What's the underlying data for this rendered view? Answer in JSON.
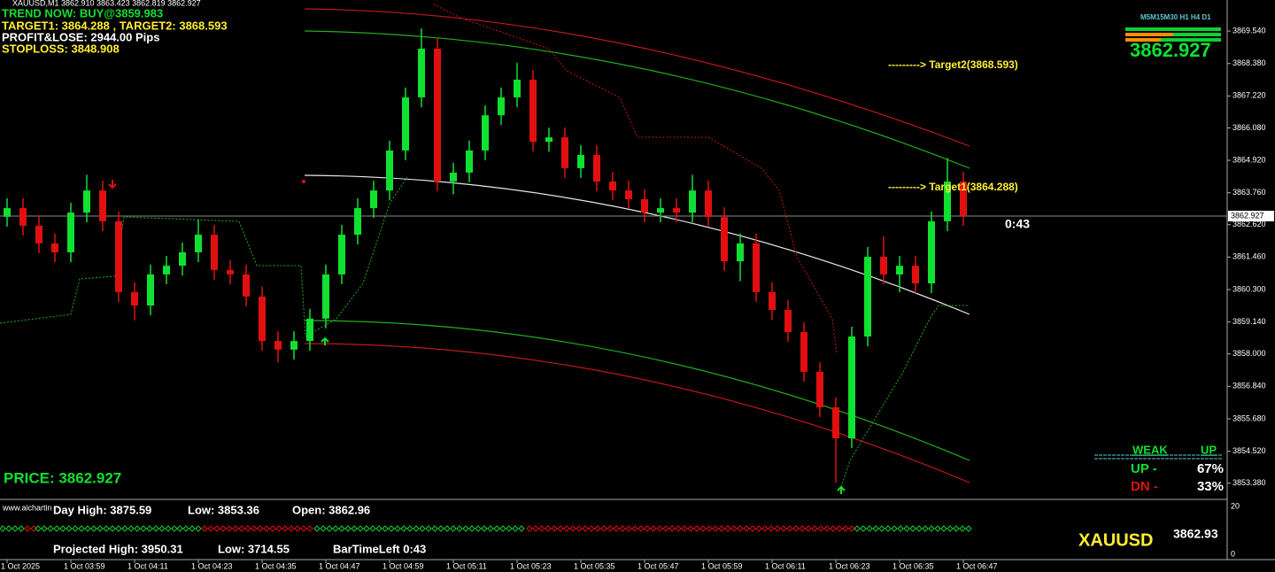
{
  "header": {
    "symbol_line": "XAUUSD,M1  3862.910 3863.423 3862.819 3862.927",
    "trend": "TREND NOW: BUY@3859.983",
    "targets": "TARGET1: 3864.288 , TARGET2: 3868.593",
    "profit": "PROFIT&LOSE: 2944.00 Pips",
    "stoploss": "STOPLOSS: 3848.908"
  },
  "chart_data": {
    "type": "candlestick",
    "open": [
      3862.9,
      3863.21,
      3862.58,
      3861.95,
      3861.63,
      3863.05,
      3863.84,
      3862.74,
      3860.21,
      3859.73,
      3860.84,
      3861.15,
      3861.63,
      3862.26,
      3861.0,
      3860.84,
      3860.05,
      3858.46,
      3858.15,
      3858.46,
      3859.26,
      3860.84,
      3862.26,
      3863.21,
      3863.84,
      3865.27,
      3867.17,
      3868.91,
      3864.16,
      3864.48,
      3865.27,
      3866.53,
      3867.17,
      3867.8,
      3865.58,
      3865.74,
      3864.64,
      3865.11,
      3864.16,
      3863.84,
      3863.53,
      3863.05,
      3863.21,
      3863.05,
      3863.84,
      3862.89,
      3861.31,
      3861.95,
      3860.21,
      3859.57,
      3858.78,
      3857.36,
      3856.09,
      3854.98,
      3858.62,
      3861.47,
      3860.84,
      3861.15,
      3860.52,
      3862.74,
      3864.16
    ],
    "high": [
      3863.56,
      3863.56,
      3862.93,
      3862.3,
      3863.4,
      3864.4,
      3864.19,
      3863.09,
      3860.56,
      3861.19,
      3861.5,
      3861.98,
      3862.8,
      3862.61,
      3861.35,
      3861.19,
      3860.4,
      3858.81,
      3858.81,
      3859.61,
      3861.19,
      3862.61,
      3863.56,
      3864.19,
      3865.62,
      3867.52,
      3869.63,
      3869.26,
      3864.83,
      3865.62,
      3866.88,
      3867.52,
      3868.4,
      3868.15,
      3866.09,
      3866.09,
      3865.46,
      3865.46,
      3864.51,
      3864.19,
      3863.88,
      3863.56,
      3863.56,
      3864.4,
      3864.19,
      3863.24,
      3862.3,
      3862.3,
      3860.56,
      3859.92,
      3859.13,
      3857.71,
      3856.44,
      3858.97,
      3861.82,
      3862.2,
      3861.5,
      3861.5,
      3863.09,
      3865.0,
      3864.51
    ],
    "low": [
      3862.55,
      3862.23,
      3861.6,
      3861.28,
      3861.28,
      3862.7,
      3862.39,
      3859.86,
      3859.2,
      3859.38,
      3860.49,
      3860.8,
      3861.28,
      3860.65,
      3860.49,
      3859.7,
      3858.11,
      3857.7,
      3857.8,
      3858.11,
      3858.91,
      3860.49,
      3861.91,
      3862.86,
      3863.49,
      3864.92,
      3866.82,
      3863.81,
      3863.7,
      3864.13,
      3864.92,
      3866.18,
      3866.82,
      3865.23,
      3865.23,
      3864.29,
      3864.29,
      3863.81,
      3863.49,
      3863.18,
      3862.7,
      3862.7,
      3862.7,
      3862.7,
      3862.54,
      3860.96,
      3860.6,
      3859.86,
      3859.22,
      3858.43,
      3857.01,
      3855.74,
      3853.4,
      3854.63,
      3858.27,
      3860.49,
      3860.2,
      3860.17,
      3860.17,
      3862.39,
      3862.58
    ],
    "close": [
      3863.21,
      3862.58,
      3861.95,
      3861.63,
      3863.05,
      3863.84,
      3862.74,
      3860.21,
      3859.73,
      3860.84,
      3861.15,
      3861.63,
      3862.26,
      3861.0,
      3860.84,
      3860.05,
      3858.46,
      3858.15,
      3858.46,
      3859.26,
      3860.84,
      3862.26,
      3863.21,
      3863.84,
      3865.27,
      3867.17,
      3868.91,
      3864.16,
      3864.48,
      3865.27,
      3866.53,
      3867.17,
      3867.8,
      3865.58,
      3865.74,
      3864.64,
      3865.11,
      3864.16,
      3863.84,
      3863.53,
      3863.05,
      3863.21,
      3863.05,
      3863.84,
      3862.89,
      3861.31,
      3861.95,
      3860.21,
      3859.57,
      3858.78,
      3857.36,
      3856.09,
      3854.98,
      3858.62,
      3861.47,
      3860.84,
      3861.15,
      3860.52,
      3862.74,
      3864.16,
      3862.93
    ],
    "up_color": "#10e030",
    "down_color": "#e01010",
    "ylim": [
      3852.83,
      3870.65
    ],
    "yticks": [
      {
        "value": 3853.38,
        "label": "3853.380"
      },
      {
        "value": 3854.52,
        "label": "3854.520"
      },
      {
        "value": 3855.68,
        "label": "3855.680"
      },
      {
        "value": 3856.84,
        "label": "3856.840"
      },
      {
        "value": 3858,
        "label": "3858.000"
      },
      {
        "value": 3859.14,
        "label": "3859.140"
      },
      {
        "value": 3860.3,
        "label": "3860.300"
      },
      {
        "value": 3861.46,
        "label": "3861.460"
      },
      {
        "value": 3862.62,
        "label": "3862.620"
      },
      {
        "value": 3863.76,
        "label": "3863.760"
      },
      {
        "value": 3864.92,
        "label": "3864.920"
      },
      {
        "value": 3866.08,
        "label": "3866.080"
      },
      {
        "value": 3867.22,
        "label": "3867.220"
      },
      {
        "value": 3868.38,
        "label": "3868.380"
      },
      {
        "value": 3869.54,
        "label": "3869.540"
      }
    ],
    "xticks": [
      "1 Oct 2025",
      "1 Oct 03:59",
      "1 Oct 04:11",
      "1 Oct 04:23",
      "1 Oct 04:35",
      "1 Oct 04:47",
      "1 Oct 04:59",
      "1 Oct 05:11",
      "1 Oct 05:23",
      "1 Oct 05:35",
      "1 Oct 05:47",
      "1 Oct 05:59",
      "1 Oct 06:11",
      "1 Oct 06:23",
      "1 Oct 06:35",
      "1 Oct 06:47"
    ],
    "current_price": {
      "value": 3862.927,
      "label": "3862.927"
    }
  },
  "annotations": {
    "target2": "---------> Target2(3868.593)",
    "target1": "---------> Target1(3864.288)",
    "timer": "0:43",
    "price": "PRICE: 3862.927"
  },
  "widget": {
    "timeframes": "M5M15M30 H1 H4 D1",
    "price": "3862.927",
    "weak": "WEAK",
    "weak_dir": "UP",
    "up": "UP -",
    "up_pct": "67%",
    "dn": "DN -",
    "dn_pct": "33%"
  },
  "panel": {
    "site": "www.aichartin",
    "day_high": "Day High: 3875.59",
    "low": "Low: 3853.36",
    "open": "Open: 3862.96",
    "projected_high": "Projected High:  3950.31",
    "projected_low": "Low: 3714.55",
    "bar_time_left": "BarTimeLeft  0:43",
    "symbol": "XAUUSD",
    "symbol_price": "3862.93",
    "axis_top": "20",
    "axis_bottom": "0"
  }
}
